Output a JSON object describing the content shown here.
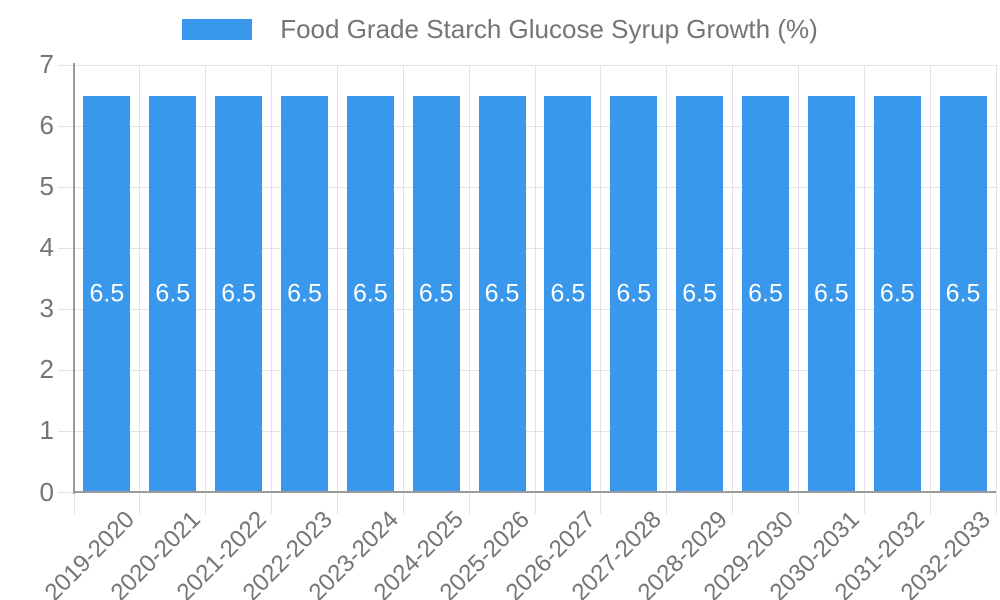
{
  "chart_style": {
    "bar_color": "#3997EC",
    "legend_swatch_color": "#3997EC",
    "text_color": "#757575",
    "grid_color": "#e3e3e3",
    "axis_color": "#9a9a9a",
    "value_label_color": "#ffffff",
    "background_color": "#ffffff"
  },
  "chart_data": {
    "type": "bar",
    "title": "Food Grade Starch Glucose Syrup Growth (%)",
    "xlabel": "",
    "ylabel": "",
    "categories": [
      "2019-2020",
      "2020-2021",
      "2021-2022",
      "2022-2023",
      "2023-2024",
      "2024-2025",
      "2025-2026",
      "2026-2027",
      "2027-2028",
      "2028-2029",
      "2029-2030",
      "2030-2031",
      "2031-2032",
      "2032-2033"
    ],
    "series": [
      {
        "name": "Food Grade Starch Glucose Syrup Growth (%)",
        "values": [
          6.5,
          6.5,
          6.5,
          6.5,
          6.5,
          6.5,
          6.5,
          6.5,
          6.5,
          6.5,
          6.5,
          6.5,
          6.5,
          6.5
        ]
      }
    ],
    "value_labels": [
      "6.5",
      "6.5",
      "6.5",
      "6.5",
      "6.5",
      "6.5",
      "6.5",
      "6.5",
      "6.5",
      "6.5",
      "6.5",
      "6.5",
      "6.5",
      "6.5"
    ],
    "ylim": [
      0,
      7
    ],
    "yticks": [
      0,
      1,
      2,
      3,
      4,
      5,
      6,
      7
    ],
    "grid": true,
    "legend_position": "top"
  }
}
